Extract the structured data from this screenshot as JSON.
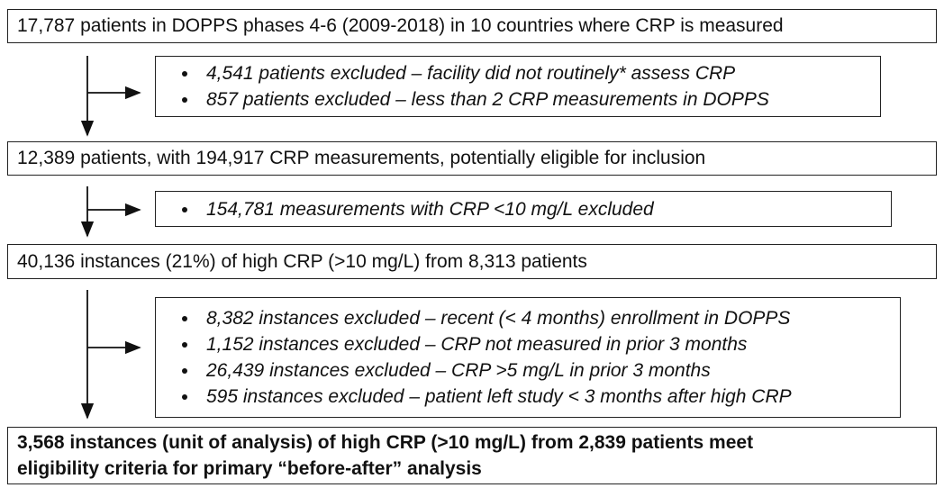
{
  "boxes": [
    {
      "text": "17,787 patients in DOPPS phases 4-6 (2009-2018) in 10 countries where CRP is measured"
    },
    {
      "text": "12,389 patients, with 194,917 CRP measurements, potentially eligible for inclusion"
    },
    {
      "text": "40,136 instances (21%) of high CRP (>10 mg/L) from 8,313 patients"
    },
    {
      "lines": [
        "3,568 instances (unit of analysis) of high CRP (>10 mg/L) from 2,839 patients meet",
        "eligibility  criteria for primary “before-after” analysis"
      ]
    }
  ],
  "exclusions": [
    {
      "items": [
        "4,541 patients excluded – facility did not routinely* assess CRP",
        "857 patients excluded – less than 2 CRP measurements in DOPPS"
      ]
    },
    {
      "items": [
        "154,781 measurements with CRP <10 mg/L excluded"
      ]
    },
    {
      "items": [
        "8,382 instances excluded – recent (< 4 months) enrollment in DOPPS",
        "1,152 instances excluded – CRP not measured in prior 3 months",
        "26,439 instances excluded – CRP >5 mg/L in prior 3 months",
        "595 instances excluded – patient left study < 3 months after high CRP"
      ]
    }
  ]
}
